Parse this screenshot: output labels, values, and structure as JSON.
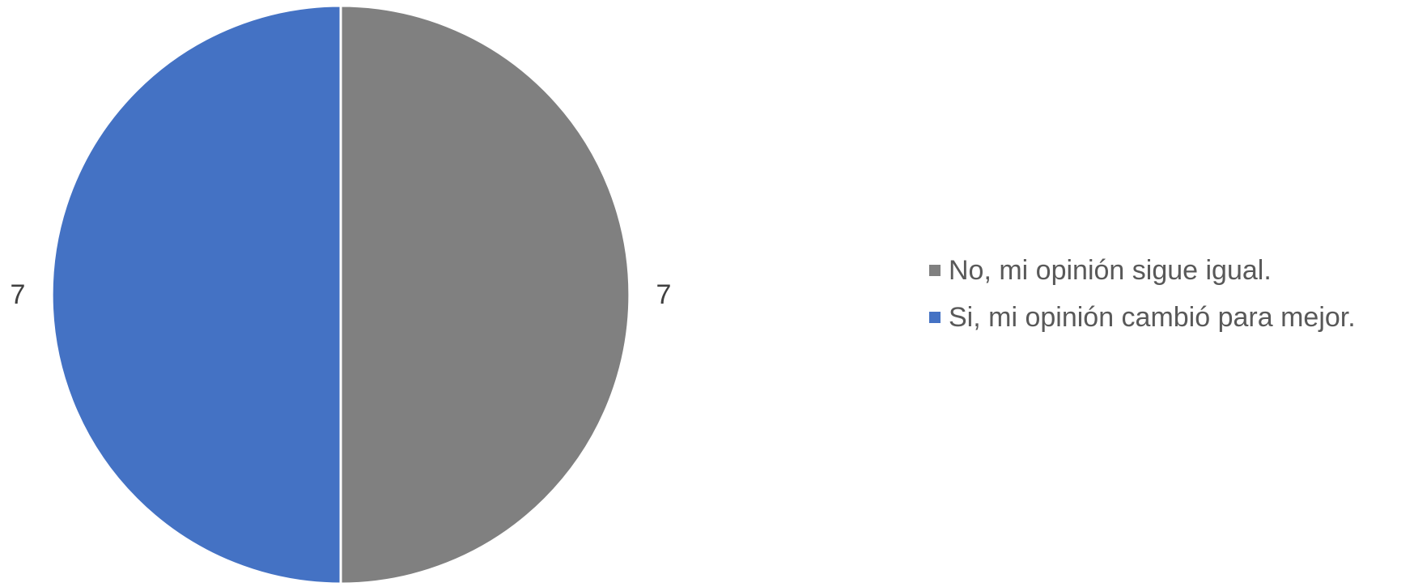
{
  "chart_data": {
    "type": "pie",
    "title": "",
    "slices": [
      {
        "label": "No, mi opinión sigue igual.",
        "value": 7,
        "color": "#808080"
      },
      {
        "label": "Si, mi opinión cambió para mejor.",
        "value": 7,
        "color": "#4472C4"
      }
    ],
    "data_labels": [
      "7",
      "7"
    ],
    "legend": {
      "position": "right",
      "entries": [
        "No, mi opinión sigue igual.",
        "Si, mi opinión cambió para mejor."
      ]
    }
  }
}
